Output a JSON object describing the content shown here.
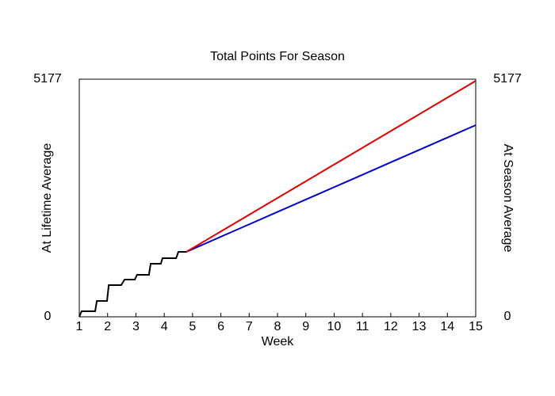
{
  "chart_data": {
    "type": "line",
    "title": "Total Points For Season",
    "xlabel": "Week",
    "ylabel": "At Lifetime Average",
    "y2label": "At Season Average",
    "ylabel_color": "#0000cc",
    "y2label_color": "#dd0000",
    "xlim": [
      1,
      15
    ],
    "xticks": [
      1,
      2,
      3,
      4,
      5,
      6,
      7,
      8,
      9,
      10,
      11,
      12,
      13,
      14,
      15
    ],
    "ylim": [
      0,
      5177
    ],
    "yticks": [
      0,
      5177
    ],
    "y2lim": [
      0,
      5177
    ],
    "y2ticks": [
      0,
      5177
    ],
    "series": [
      {
        "color": "#000000",
        "x": [
          1.0,
          1.08,
          1.56,
          1.62,
          1.98,
          2.04,
          2.48,
          2.6,
          2.96,
          3.04,
          3.46,
          3.52,
          3.88,
          3.94,
          4.42,
          4.5,
          4.78
        ],
        "values": [
          0,
          121,
          121,
          345,
          345,
          690,
          690,
          811,
          811,
          915,
          915,
          1156,
          1156,
          1277,
          1277,
          1415,
          1415
        ]
      },
      {
        "color": "#0000cc",
        "x": [
          4.78,
          5,
          6,
          7,
          8,
          9,
          10,
          11,
          12,
          13,
          14,
          15
        ],
        "values": [
          1415,
          1474,
          1745,
          2015,
          2285,
          2555,
          2825,
          3095,
          3366,
          3636,
          3906,
          4176
        ]
      },
      {
        "color": "#dd0000",
        "axis": "y2",
        "x": [
          4.78,
          5,
          6,
          7,
          8,
          9,
          10,
          11,
          12,
          13,
          14,
          15
        ],
        "values": [
          1415,
          1495,
          1860,
          2224,
          2589,
          2953,
          3318,
          3682,
          4047,
          4411,
          4776,
          5140
        ]
      }
    ]
  }
}
